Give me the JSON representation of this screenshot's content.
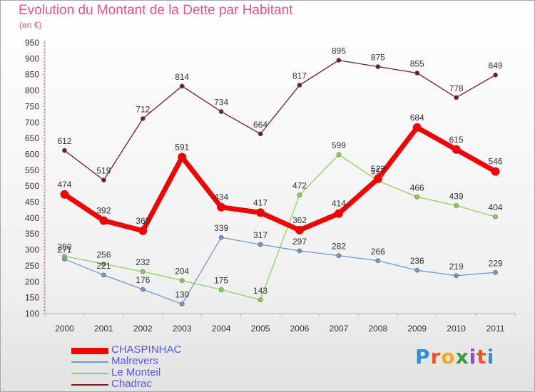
{
  "header": {
    "title": "Evolution du Montant de la Dette par Habitant",
    "subtitle": "(en €)"
  },
  "brand": {
    "letters": [
      "P",
      "r",
      "o",
      "x",
      "i",
      "t",
      "i"
    ]
  },
  "chart_data": {
    "type": "line",
    "categories": [
      "2000",
      "2001",
      "2002",
      "2003",
      "2004",
      "2005",
      "2006",
      "2007",
      "2008",
      "2009",
      "2010",
      "2011"
    ],
    "ylim": [
      100,
      950
    ],
    "yticks": [
      100,
      150,
      200,
      250,
      300,
      350,
      400,
      450,
      500,
      550,
      600,
      650,
      700,
      750,
      800,
      850,
      900,
      950
    ],
    "grid": false,
    "legend_position": "bottom-left",
    "series": [
      {
        "name": "Chadrac",
        "color": "#701c20",
        "values": [
          612,
          519,
          712,
          814,
          734,
          664,
          817,
          895,
          875,
          855,
          778,
          849
        ],
        "labels": [
          "612",
          "519",
          "712",
          "814",
          "734",
          "664",
          "817",
          "895",
          "875",
          "855",
          "778",
          "849"
        ]
      },
      {
        "name": "Le Monteil",
        "color": "#8ed357",
        "values": [
          280,
          256,
          232,
          204,
          175,
          143,
          472,
          599,
          517,
          466,
          439,
          404
        ],
        "labels": [
          "280",
          "256",
          "232",
          "204",
          "175",
          "143",
          "472",
          "599",
          "517",
          "466",
          "439",
          "404"
        ]
      },
      {
        "name": "Malrevers",
        "color": "#6f9dca",
        "values": [
          271,
          221,
          176,
          130,
          339,
          317,
          297,
          282,
          266,
          236,
          219,
          229
        ],
        "labels": [
          "271",
          "221",
          "176",
          "130",
          "339",
          "317",
          "297",
          "282",
          "266",
          "236",
          "219",
          "229"
        ]
      },
      {
        "name": "CHASPINHAC",
        "color": "#ee0606",
        "values": [
          474,
          392,
          360,
          591,
          434,
          417,
          362,
          414,
          523,
          684,
          615,
          546
        ],
        "labels": [
          "474",
          "392",
          "360",
          "591",
          "434",
          "417",
          "362",
          "414",
          "523",
          "684",
          "615",
          "546"
        ]
      }
    ],
    "legend_order": [
      "CHASPINHAC",
      "Malrevers",
      "Le Monteil",
      "Chadrac"
    ]
  }
}
